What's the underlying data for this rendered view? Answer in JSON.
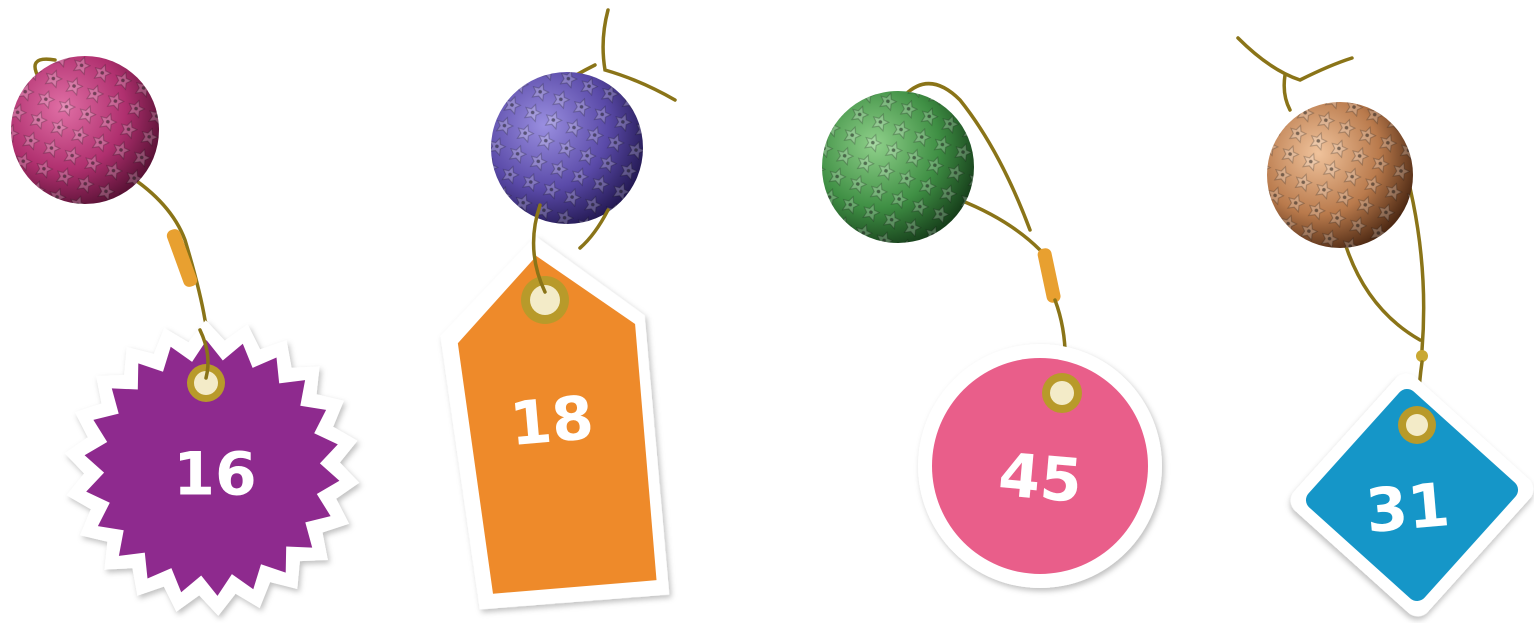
{
  "tags": [
    {
      "label": "16"
    },
    {
      "label": "18"
    },
    {
      "label": "45"
    },
    {
      "label": "31"
    }
  ]
}
